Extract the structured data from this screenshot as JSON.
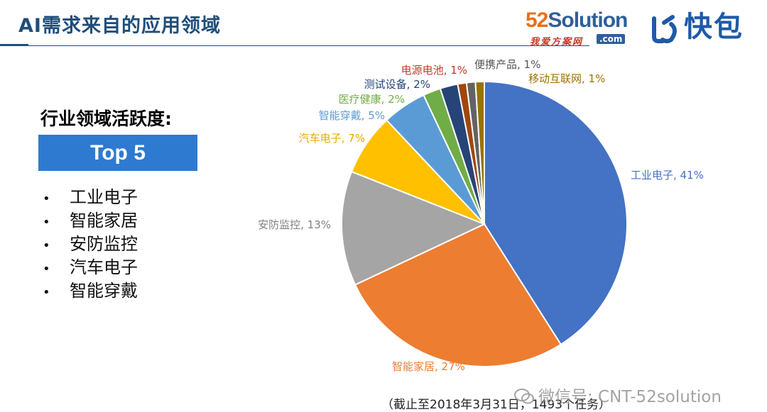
{
  "header": {
    "title": "AI需求来自的应用领域",
    "logo_52_num": "52",
    "logo_52_word": "Solution",
    "logo_52_sub": "我爱方案网",
    "logo_52_dotcom": ".com",
    "logo_kb": "快包"
  },
  "left_panel": {
    "subtitle": "行业领域活跃度:",
    "badge": "Top 5",
    "items": [
      "工业电子",
      "智能家居",
      "安防监控",
      "汽车电子",
      "智能穿戴"
    ]
  },
  "footnote": "（截止至2018年3月31日，1493个任务）",
  "watermark": "微信号: CNT-52solution",
  "chart_data": {
    "type": "pie",
    "start": "top, clockwise",
    "slices": [
      {
        "label": "工业电子, 41%",
        "value": 41,
        "color": "#4472c4",
        "label_color": "#4472c4"
      },
      {
        "label": "智能家居, 27%",
        "value": 27,
        "color": "#ed7d31",
        "label_color": "#ed7d31"
      },
      {
        "label": "安防监控, 13%",
        "value": 13,
        "color": "#a5a5a5",
        "label_color": "#808080"
      },
      {
        "label": "汽车电子, 7%",
        "value": 7,
        "color": "#ffc000",
        "label_color": "#e8a800"
      },
      {
        "label": "智能穿戴, 5%",
        "value": 5,
        "color": "#5b9bd5",
        "label_color": "#5b9bd5"
      },
      {
        "label": "医疗健康, 2%",
        "value": 2,
        "color": "#70ad47",
        "label_color": "#70ad47"
      },
      {
        "label": "测试设备, 2%",
        "value": 2,
        "color": "#264478",
        "label_color": "#264478"
      },
      {
        "label": "电源电池, 1%",
        "value": 1,
        "color": "#9e480e",
        "label_color": "#c0392b"
      },
      {
        "label": "便携产品, 1%",
        "value": 1,
        "color": "#636363",
        "label_color": "#555555"
      },
      {
        "label": "移动互联网, 1%",
        "value": 1,
        "color": "#997300",
        "label_color": "#997300"
      }
    ]
  }
}
